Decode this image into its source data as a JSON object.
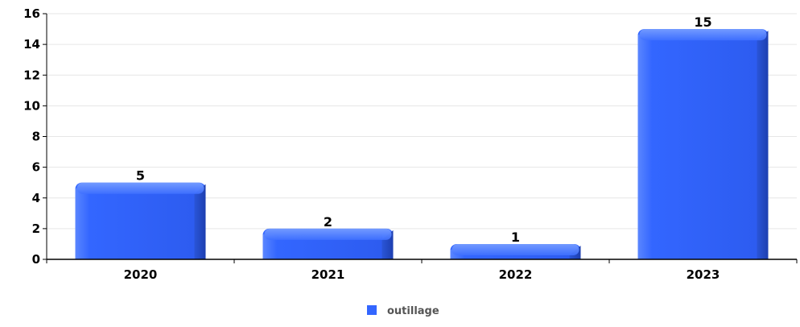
{
  "chart_data": {
    "type": "bar",
    "categories": [
      "2020",
      "2021",
      "2022",
      "2023"
    ],
    "series": [
      {
        "name": "outillage",
        "values": [
          5,
          2,
          1,
          15
        ]
      }
    ],
    "ylim": [
      0,
      16
    ],
    "yticks": [
      "0",
      "2",
      "4",
      "6",
      "8",
      "10",
      "12",
      "14",
      "16"
    ],
    "grid": true,
    "legend_position": "bottom-center",
    "bar_color": "#3366ff"
  }
}
